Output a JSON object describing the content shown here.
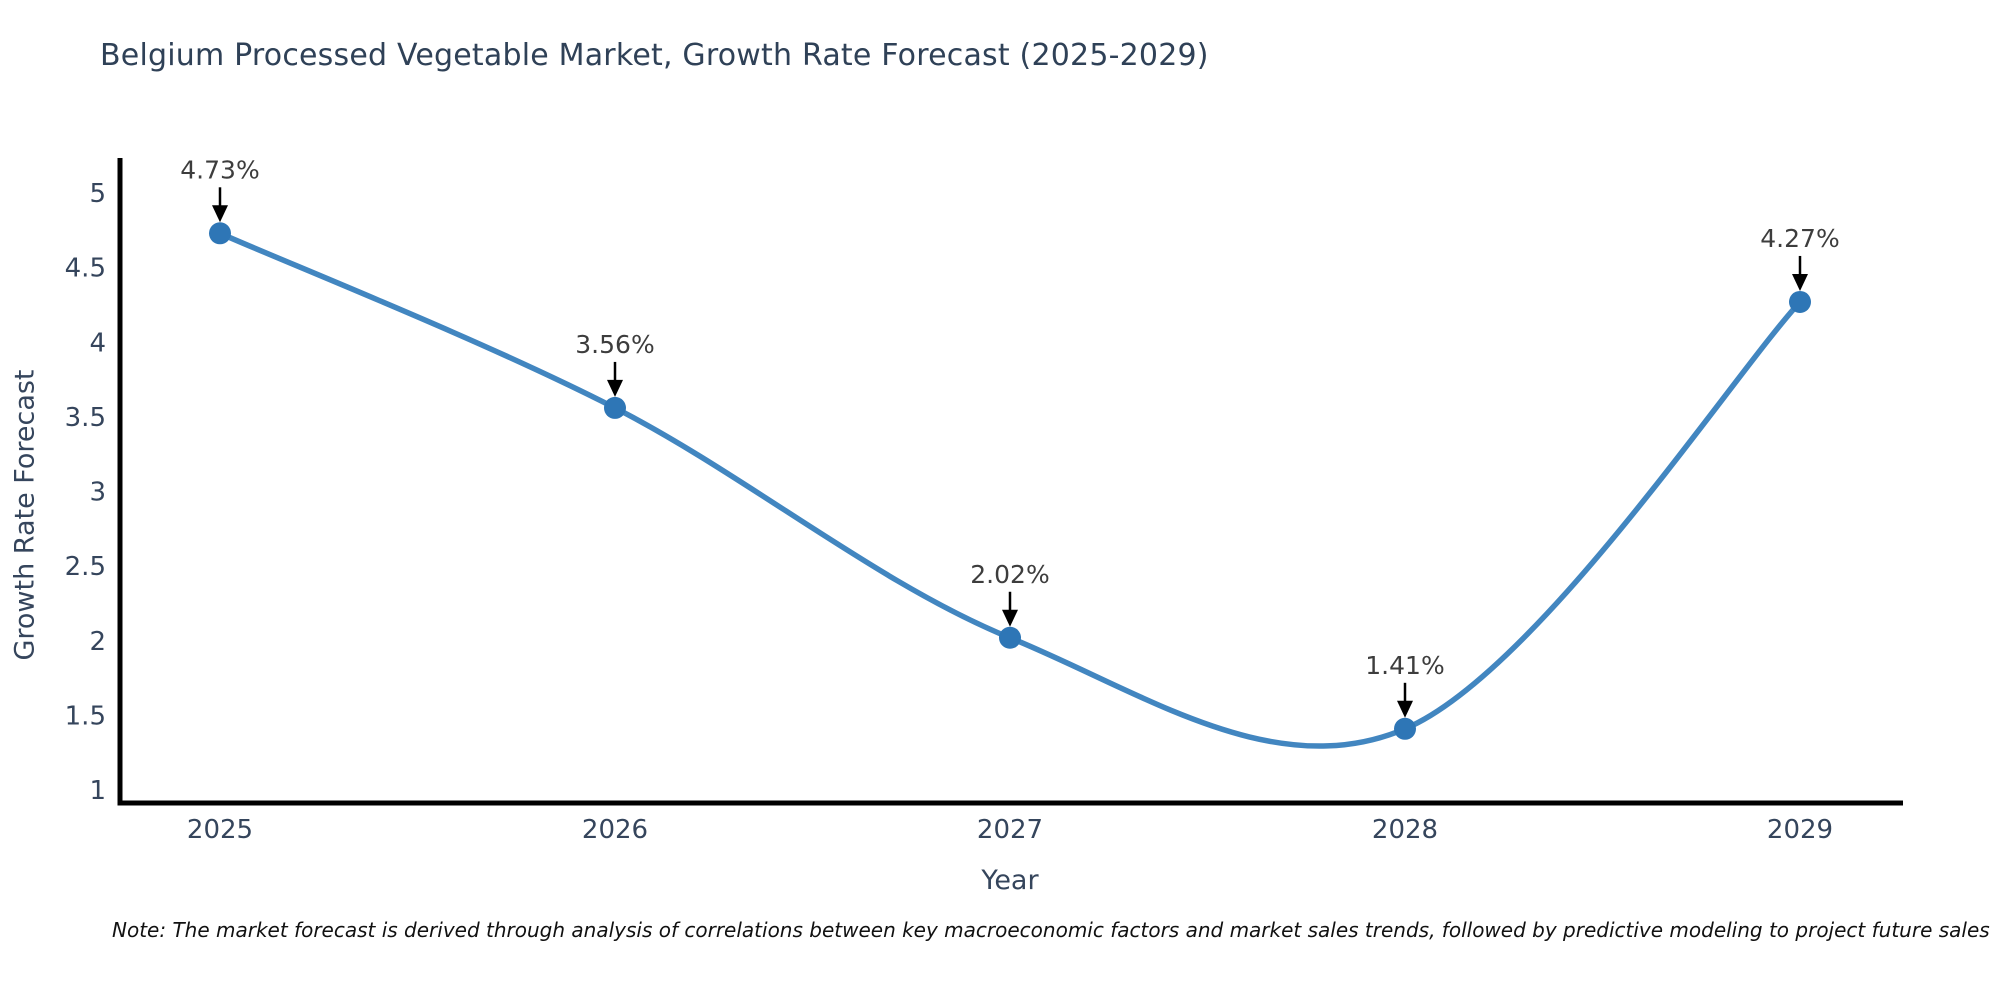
{
  "title": "Belgium Processed Vegetable Market, Growth Rate Forecast (2025-2029)",
  "note": "Note: The market forecast is derived through analysis of correlations between key macroeconomic factors and market sales trends, followed by predictive modeling to project future sales",
  "chart_data": {
    "type": "line",
    "title": "Belgium Processed Vegetable Market, Growth Rate Forecast (2025-2029)",
    "xlabel": "Year",
    "ylabel": "Growth Rate Forecast",
    "x": [
      2025,
      2026,
      2027,
      2028,
      2029
    ],
    "values": [
      4.73,
      3.56,
      2.02,
      1.41,
      4.27
    ],
    "point_labels": [
      "4.73%",
      "3.56%",
      "2.02%",
      "1.41%",
      "4.27%"
    ],
    "xticks": [
      "2025",
      "2026",
      "2027",
      "2028",
      "2029"
    ],
    "yticks": [
      1,
      1.5,
      2,
      2.5,
      3,
      3.5,
      4,
      4.5,
      5
    ],
    "ylim": [
      1,
      5
    ],
    "line_shape": "spline",
    "grid": false,
    "legend": "none",
    "colors": {
      "line": "#4286c0",
      "marker": "#2e76b6",
      "axis": "#000000",
      "annotation_text": "#3d3d3d",
      "annotation_arrow": "#000000",
      "tick_label": "#35455c",
      "title": "#2f4157"
    }
  }
}
